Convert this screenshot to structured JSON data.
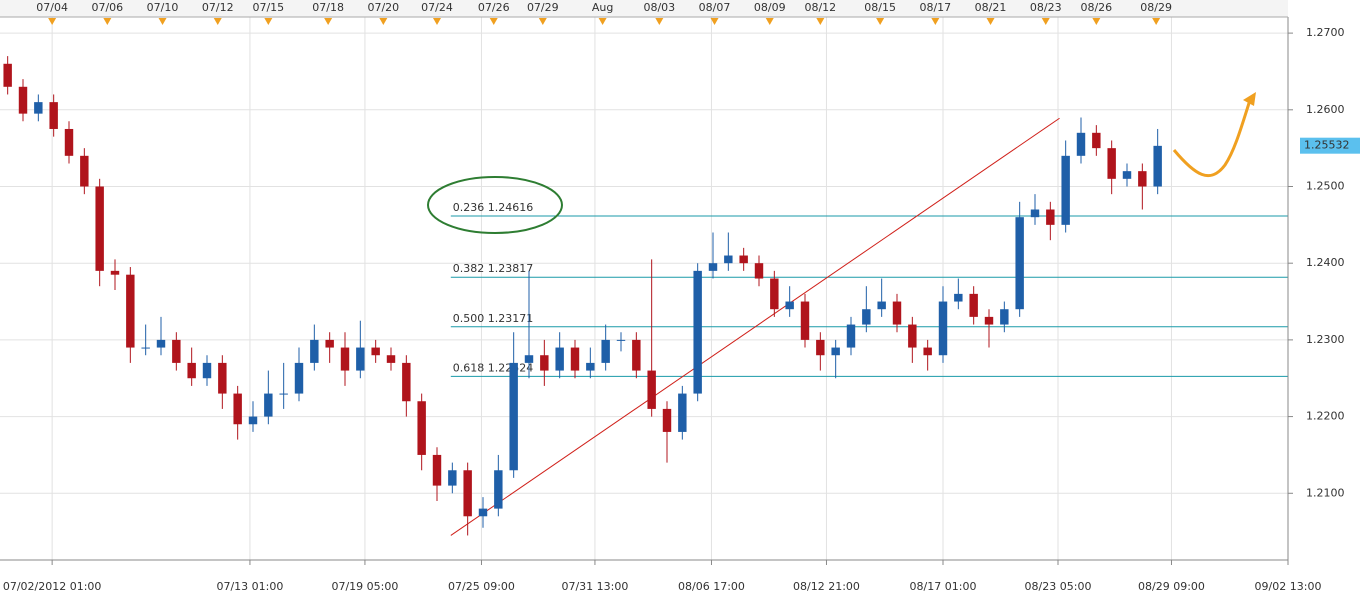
{
  "chart_data": {
    "type": "candlestick",
    "x": [
      0.5,
      1.5,
      2.5,
      3.5,
      4.5,
      5.5,
      6.5,
      7.5,
      8.5,
      9.5,
      10.5,
      11.5,
      12.5,
      13.5,
      14.5,
      15.5,
      16.5,
      17.5,
      18.5,
      19.5,
      20.5,
      21.5,
      22.5,
      23.5,
      24.5,
      25.5,
      26.5,
      27.5,
      28.5,
      29.5,
      30.5,
      31.5,
      32.5,
      33.5,
      34.5,
      35.5,
      36.5,
      37.5,
      38.5,
      39.5,
      40.5,
      41.5,
      42.5,
      43.5,
      44.5,
      45.5,
      46.5,
      47.5,
      48.5,
      49.5,
      50.5,
      51.5,
      52.5,
      53.5,
      54.5,
      55.5,
      56.5,
      57.5,
      58.5,
      59.5,
      60.5,
      61.5,
      62.5,
      63.5,
      64.5,
      65.5,
      66.5,
      67.5,
      68.5,
      69.5,
      70.5,
      71.5,
      72.5,
      73.5,
      74.5,
      75.5
    ],
    "open": [
      1.266,
      1.263,
      1.2595,
      1.261,
      1.2575,
      1.254,
      1.25,
      1.239,
      1.2385,
      1.229,
      1.229,
      1.23,
      1.227,
      1.225,
      1.227,
      1.223,
      1.219,
      1.22,
      1.223,
      1.223,
      1.227,
      1.23,
      1.229,
      1.226,
      1.229,
      1.228,
      1.227,
      1.222,
      1.215,
      1.211,
      1.213,
      1.207,
      1.208,
      1.213,
      1.227,
      1.228,
      1.226,
      1.229,
      1.226,
      1.227,
      1.23,
      1.23,
      1.226,
      1.221,
      1.218,
      1.223,
      1.239,
      1.24,
      1.241,
      1.24,
      1.238,
      1.234,
      1.235,
      1.23,
      1.228,
      1.229,
      1.232,
      1.234,
      1.235,
      1.232,
      1.229,
      1.228,
      1.235,
      1.236,
      1.233,
      1.232,
      1.234,
      1.246,
      1.247,
      1.245,
      1.254,
      1.257,
      1.255,
      1.251,
      1.252,
      1.25
    ],
    "high": [
      1.267,
      1.264,
      1.262,
      1.262,
      1.2585,
      1.255,
      1.251,
      1.2405,
      1.2395,
      1.232,
      1.233,
      1.231,
      1.229,
      1.228,
      1.228,
      1.224,
      1.222,
      1.226,
      1.227,
      1.229,
      1.232,
      1.231,
      1.231,
      1.2325,
      1.23,
      1.229,
      1.228,
      1.223,
      1.216,
      1.214,
      1.214,
      1.2095,
      1.215,
      1.231,
      1.239,
      1.23,
      1.231,
      1.23,
      1.229,
      1.232,
      1.231,
      1.231,
      1.2405,
      1.222,
      1.224,
      1.24,
      1.244,
      1.244,
      1.242,
      1.241,
      1.239,
      1.237,
      1.236,
      1.231,
      1.23,
      1.233,
      1.237,
      1.238,
      1.236,
      1.233,
      1.23,
      1.237,
      1.238,
      1.237,
      1.234,
      1.235,
      1.248,
      1.249,
      1.248,
      1.256,
      1.259,
      1.258,
      1.256,
      1.253,
      1.253,
      1.2575
    ],
    "low": [
      1.262,
      1.2585,
      1.2585,
      1.2565,
      1.253,
      1.249,
      1.237,
      1.2365,
      1.227,
      1.228,
      1.228,
      1.226,
      1.224,
      1.224,
      1.221,
      1.217,
      1.218,
      1.219,
      1.221,
      1.222,
      1.226,
      1.227,
      1.224,
      1.225,
      1.227,
      1.226,
      1.22,
      1.213,
      1.209,
      1.21,
      1.2045,
      1.2055,
      1.207,
      1.212,
      1.225,
      1.224,
      1.225,
      1.225,
      1.225,
      1.226,
      1.2285,
      1.225,
      1.22,
      1.214,
      1.217,
      1.222,
      1.238,
      1.239,
      1.239,
      1.237,
      1.233,
      1.233,
      1.229,
      1.226,
      1.225,
      1.228,
      1.231,
      1.233,
      1.231,
      1.227,
      1.226,
      1.227,
      1.234,
      1.232,
      1.229,
      1.231,
      1.233,
      1.245,
      1.243,
      1.244,
      1.253,
      1.254,
      1.249,
      1.25,
      1.247,
      1.249
    ],
    "close": [
      1.263,
      1.2595,
      1.261,
      1.2575,
      1.254,
      1.25,
      1.239,
      1.2385,
      1.229,
      1.229,
      1.23,
      1.227,
      1.225,
      1.227,
      1.223,
      1.219,
      1.22,
      1.223,
      1.223,
      1.227,
      1.23,
      1.229,
      1.226,
      1.229,
      1.228,
      1.227,
      1.222,
      1.215,
      1.211,
      1.213,
      1.207,
      1.208,
      1.213,
      1.227,
      1.228,
      1.226,
      1.229,
      1.226,
      1.227,
      1.23,
      1.23,
      1.226,
      1.221,
      1.218,
      1.223,
      1.239,
      1.24,
      1.241,
      1.24,
      1.238,
      1.234,
      1.235,
      1.23,
      1.228,
      1.229,
      1.232,
      1.234,
      1.235,
      1.232,
      1.229,
      1.228,
      1.235,
      1.236,
      1.233,
      1.232,
      1.234,
      1.246,
      1.247,
      1.245,
      1.254,
      1.257,
      1.255,
      1.251,
      1.252,
      1.25,
      1.2553
    ],
    "up_color": "#1f5fa8",
    "down_color": "#b0141c",
    "xlim": [
      0,
      84
    ],
    "ylim": [
      1.2013,
      1.2721
    ],
    "yticks": [
      {
        "value": 1.21,
        "label": "1.2100"
      },
      {
        "value": 1.22,
        "label": "1.2200"
      },
      {
        "value": 1.23,
        "label": "1.2300"
      },
      {
        "value": 1.24,
        "label": "1.2400"
      },
      {
        "value": 1.25,
        "label": "1.2500"
      },
      {
        "value": 1.26,
        "label": "1.2600"
      },
      {
        "value": 1.27,
        "label": "1.2700"
      }
    ],
    "xticks": [
      {
        "value": 3.4,
        "label": "07/02/2012 01:00"
      },
      {
        "value": 16.3,
        "label": "07/13 01:00"
      },
      {
        "value": 23.8,
        "label": "07/19 05:00"
      },
      {
        "value": 31.4,
        "label": "07/25 09:00"
      },
      {
        "value": 38.8,
        "label": "07/31 13:00"
      },
      {
        "value": 46.4,
        "label": "08/06 17:00"
      },
      {
        "value": 53.9,
        "label": "08/12 21:00"
      },
      {
        "value": 61.5,
        "label": "08/17 01:00"
      },
      {
        "value": 69,
        "label": "08/23 05:00"
      },
      {
        "value": 76.4,
        "label": "08/29 09:00"
      },
      {
        "value": 84,
        "label": "09/02 13:00"
      }
    ],
    "top_xticks": [
      {
        "value": 3.4,
        "label": "07/04"
      },
      {
        "value": 7.0,
        "label": "07/06"
      },
      {
        "value": 10.6,
        "label": "07/10"
      },
      {
        "value": 14.2,
        "label": "07/12"
      },
      {
        "value": 17.5,
        "label": "07/15"
      },
      {
        "value": 21.4,
        "label": "07/18"
      },
      {
        "value": 25.0,
        "label": "07/20"
      },
      {
        "value": 28.5,
        "label": "07/24"
      },
      {
        "value": 32.2,
        "label": "07/26"
      },
      {
        "value": 35.4,
        "label": "07/29"
      },
      {
        "value": 39.3,
        "label": "Aug"
      },
      {
        "value": 43.0,
        "label": "08/03"
      },
      {
        "value": 46.6,
        "label": "08/07"
      },
      {
        "value": 50.2,
        "label": "08/09"
      },
      {
        "value": 53.5,
        "label": "08/12"
      },
      {
        "value": 57.4,
        "label": "08/15"
      },
      {
        "value": 61.0,
        "label": "08/17"
      },
      {
        "value": 64.6,
        "label": "08/21"
      },
      {
        "value": 68.2,
        "label": "08/23"
      },
      {
        "value": 71.5,
        "label": "08/26"
      },
      {
        "value": 75.4,
        "label": "08/29"
      }
    ],
    "grid": true,
    "last_price": 1.25532,
    "fib_levels": [
      {
        "value": 1.24616,
        "label": "0.236 1.24616"
      },
      {
        "value": 1.23817,
        "label": "0.382 1.23817"
      },
      {
        "value": 1.23171,
        "label": "0.500 1.23171"
      },
      {
        "value": 1.22524,
        "label": "0.618 1.22524"
      }
    ],
    "fib_color": "#1a9aa8",
    "fib_start": 29.4,
    "trendline": {
      "x": [
        29.4,
        69.1
      ],
      "values": [
        1.2045,
        1.2589
      ],
      "color": "#d0201a"
    }
  }
}
